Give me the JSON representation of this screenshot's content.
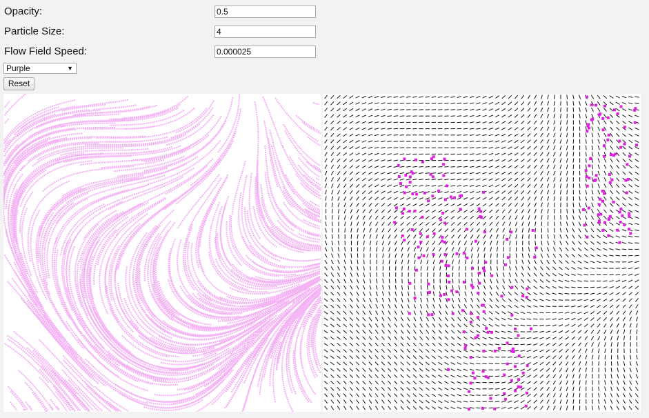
{
  "controls": {
    "opacity": {
      "label": "Opacity:",
      "value": "0.5"
    },
    "particle_size": {
      "label": "Particle Size:",
      "value": "4"
    },
    "flow_speed": {
      "label": "Flow Field Speed:",
      "value": "0.000025"
    },
    "color_select": {
      "value": "Purple"
    },
    "reset_label": "Reset"
  },
  "colors": {
    "particle": "#dd22dd",
    "field_line": "#111111",
    "canvas_bg": "#ffffff"
  },
  "icons": {
    "select_arrow": "chevron-down-icon"
  }
}
